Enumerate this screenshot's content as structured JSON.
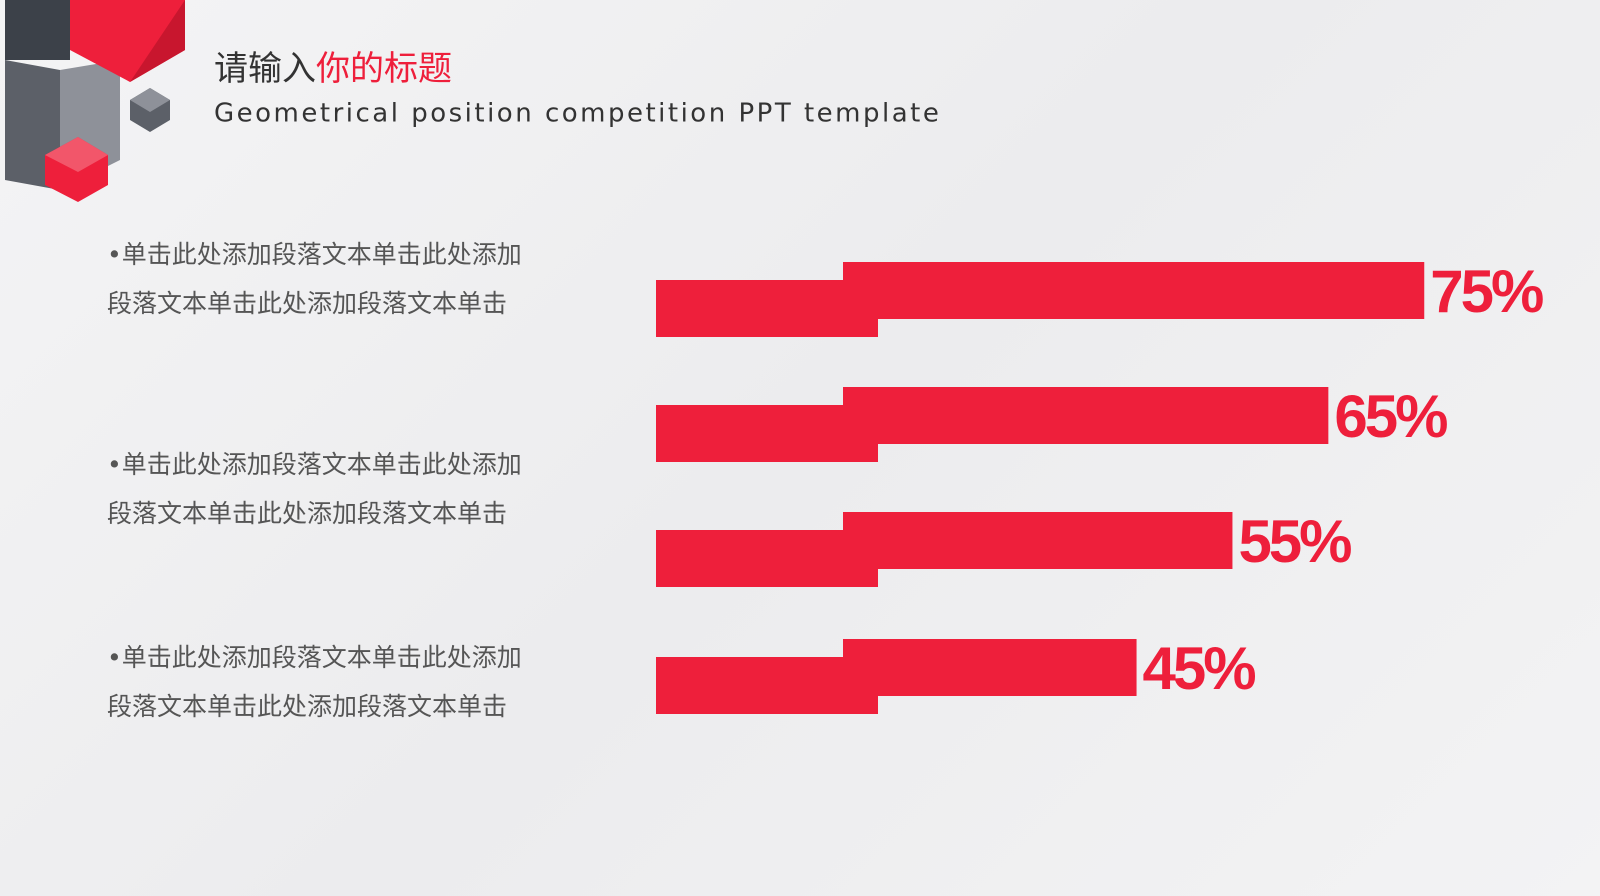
{
  "chart_data": {
    "type": "bar",
    "title": [
      "请输入",
      "你的标题"
    ],
    "subtitle": "Geometrical position competition PPT template",
    "paragraphs": [
      [
        "•单击此处添加段落文本单击此处添加",
        "段落文本单击此处添加段落文本单击"
      ],
      [
        "•单击此处添加段落文本单击此处添加",
        "段落文本单击此处添加段落文本单击"
      ],
      [
        "•单击此处添加段落文本单击此处添加",
        "段落文本单击此处添加段落文本单击"
      ]
    ],
    "values": [
      75,
      65,
      55,
      45
    ],
    "value_labels": [
      "75%",
      "65%",
      "55%",
      "45%"
    ],
    "color": "#ee1f3b"
  }
}
